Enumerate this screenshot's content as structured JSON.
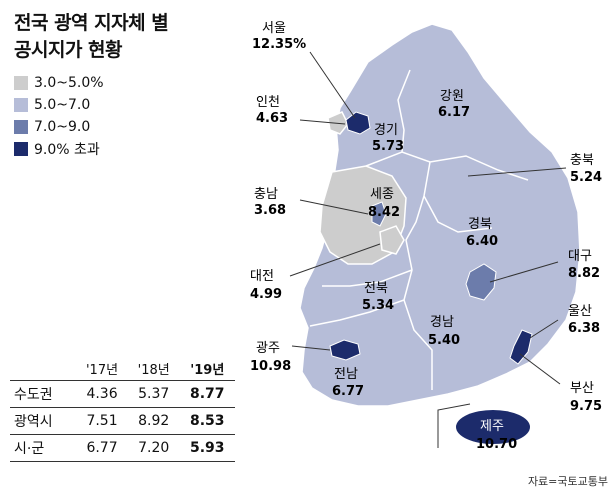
{
  "title": [
    "전국 광역 지자체 별",
    "공시지가 현황"
  ],
  "legend": [
    {
      "label": "3.0~5.0%",
      "color": "#cdcdcd"
    },
    {
      "label": "5.0~7.0",
      "color": "#b6bdd8"
    },
    {
      "label": "7.0~9.0",
      "color": "#6c7cab"
    },
    {
      "label": "9.0% 초과",
      "color": "#1c2b6b"
    }
  ],
  "regions": [
    {
      "name": "서울",
      "value": "12.35%"
    },
    {
      "name": "인천",
      "value": "4.63"
    },
    {
      "name": "경기",
      "value": "5.73"
    },
    {
      "name": "강원",
      "value": "6.17"
    },
    {
      "name": "충북",
      "value": "5.24"
    },
    {
      "name": "충남",
      "value": "3.68"
    },
    {
      "name": "세종",
      "value": "8.42"
    },
    {
      "name": "경북",
      "value": "6.40"
    },
    {
      "name": "대구",
      "value": "8.82"
    },
    {
      "name": "대전",
      "value": "4.99"
    },
    {
      "name": "전북",
      "value": "5.34"
    },
    {
      "name": "울산",
      "value": "6.38"
    },
    {
      "name": "광주",
      "value": "10.98"
    },
    {
      "name": "경남",
      "value": "5.40"
    },
    {
      "name": "전남",
      "value": "6.77"
    },
    {
      "name": "부산",
      "value": "9.75"
    },
    {
      "name": "제주",
      "value": "10.70"
    }
  ],
  "table": {
    "headers": [
      "",
      "'17년",
      "'18년",
      "'19년"
    ],
    "rows": [
      [
        "수도권",
        "4.36",
        "5.37",
        "8.77"
      ],
      [
        "광역시",
        "7.51",
        "8.92",
        "8.53"
      ],
      [
        "시·군",
        "6.77",
        "7.20",
        "5.93"
      ]
    ]
  },
  "source": "자료=국토교통부"
}
